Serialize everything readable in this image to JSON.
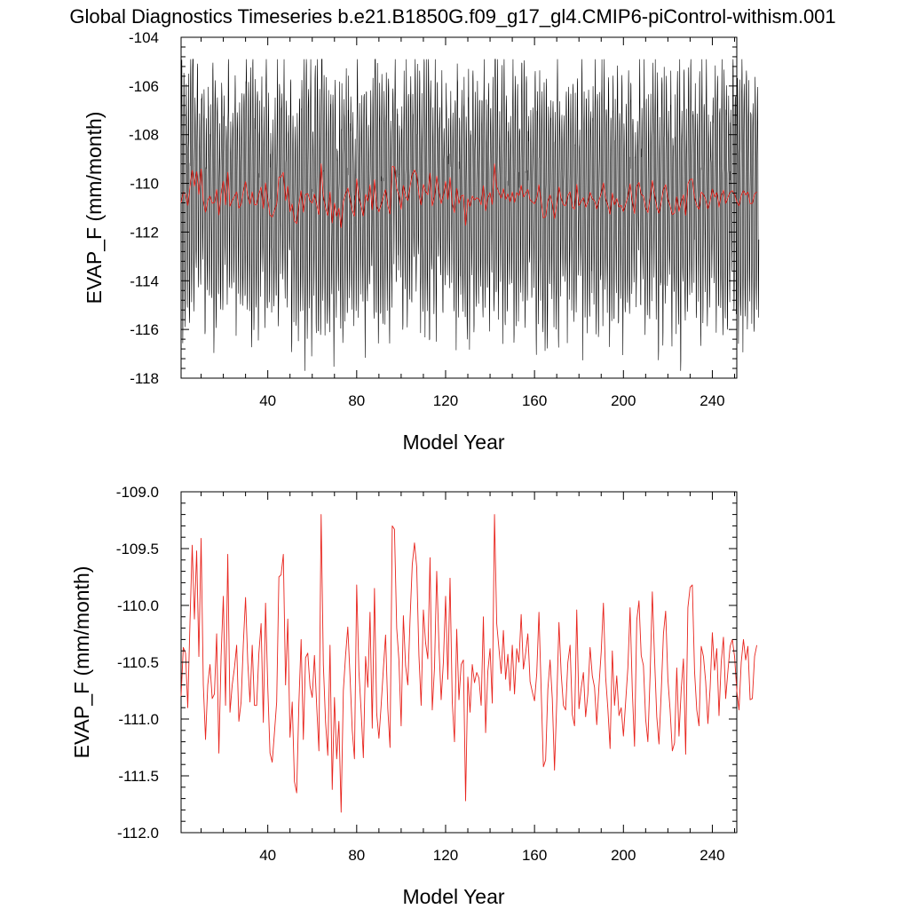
{
  "page": {
    "title": "Global Diagnostics Timeseries b.e21.B1850G.f09_g17_gl4.CMIP6-piControl-withism.001"
  },
  "colors": {
    "background": "#ffffff",
    "monthly_line": "#000000",
    "annual_line": "#e8241d",
    "axis": "#000000"
  },
  "chart_data": [
    {
      "id": "top",
      "type": "line",
      "title": "Global Diagnostics Timeseries b.e21.B1850G.f09_g17_gl4.CMIP6-piControl-withism.001",
      "xlabel": "Model Year",
      "ylabel": "EVAP_F (mm/month)",
      "xlim": [
        1,
        251
      ],
      "ylim": [
        -118,
        -104
      ],
      "x_ticks": [
        40,
        80,
        120,
        160,
        200,
        240
      ],
      "x_tick_labels": [
        "40",
        "80",
        "120",
        "160",
        "200",
        "240"
      ],
      "y_ticks": [
        -118,
        -116,
        -114,
        -112,
        -110,
        -108,
        -106,
        -104
      ],
      "y_tick_labels": [
        "-118",
        "-116",
        "-114",
        "-112",
        "-110",
        "-108",
        "-106",
        "-104"
      ],
      "grid": false,
      "legend": "none",
      "series": [
        {
          "kind": "monthly",
          "color": "#000000",
          "description_points": "monthly values oscillating around the annual mean with seasonal amplitude of about 3-5 mm/month, overall range -117.7 to -104.9",
          "x_start": 1,
          "x_step": 0.0833333,
          "count": 2988,
          "ymin_observed": -117.7,
          "ymax_observed": -104.9
        },
        {
          "kind": "annual",
          "color": "#e8241d",
          "note": "same annual series as the lower panel"
        }
      ]
    },
    {
      "id": "bottom",
      "type": "line",
      "xlabel": "Model Year",
      "ylabel": "EVAP_F (mm/month)",
      "xlim": [
        1,
        251
      ],
      "ylim": [
        -112.0,
        -109.0
      ],
      "x_ticks": [
        40,
        80,
        120,
        160,
        200,
        240
      ],
      "x_tick_labels": [
        "40",
        "80",
        "120",
        "160",
        "200",
        "240"
      ],
      "y_ticks": [
        -112.0,
        -111.5,
        -111.0,
        -110.5,
        -110.0,
        -109.5,
        -109.0
      ],
      "y_tick_labels": [
        "-112.0",
        "-111.5",
        "-111.0",
        "-110.5",
        "-110.0",
        "-109.5",
        "-109.0"
      ],
      "grid": false,
      "legend": "none",
      "series": [
        {
          "kind": "annual",
          "color": "#e8241d",
          "x_start": 1,
          "x_step": 1,
          "values": [
            -110.8,
            -110.37,
            -110.42,
            -110.9,
            -110.15,
            -109.47,
            -110.12,
            -109.52,
            -110.45,
            -109.41,
            -110.7,
            -111.18,
            -110.7,
            -110.52,
            -110.82,
            -110.78,
            -110.25,
            -111.3,
            -110.45,
            -109.92,
            -110.88,
            -109.55,
            -110.94,
            -110.7,
            -110.55,
            -110.35,
            -111.02,
            -110.85,
            -110.34,
            -109.93,
            -110.5,
            -110.85,
            -110.35,
            -110.88,
            -110.88,
            -110.42,
            -110.16,
            -111.03,
            -109.98,
            -110.72,
            -111.3,
            -111.38,
            -111.12,
            -110.85,
            -109.75,
            -109.73,
            -109.55,
            -110.7,
            -110.12,
            -111.16,
            -110.85,
            -111.55,
            -111.65,
            -110.86,
            -110.3,
            -111.18,
            -110.46,
            -110.42,
            -110.71,
            -110.81,
            -110.44,
            -110.88,
            -111.28,
            -109.2,
            -110.52,
            -111.03,
            -111.32,
            -110.35,
            -111.62,
            -110.81,
            -111.35,
            -111.02,
            -111.82,
            -110.75,
            -110.44,
            -110.19,
            -110.62,
            -111.1,
            -111.35,
            -109.82,
            -110.58,
            -110.93,
            -111.34,
            -110.45,
            -110.72,
            -110.06,
            -111.08,
            -109.85,
            -110.95,
            -111.17,
            -110.88,
            -110.56,
            -110.26,
            -110.91,
            -111.25,
            -109.3,
            -109.33,
            -110.2,
            -110.48,
            -111.06,
            -110.09,
            -110.53,
            -110.7,
            -110.13,
            -109.64,
            -109.45,
            -109.66,
            -110.44,
            -110.88,
            -110.04,
            -110.33,
            -110.47,
            -109.58,
            -110.92,
            -110.55,
            -109.7,
            -110.35,
            -110.83,
            -110.5,
            -109.92,
            -110.65,
            -109.76,
            -110.85,
            -111.2,
            -110.21,
            -110.83,
            -110.52,
            -110.48,
            -111.72,
            -110.63,
            -110.94,
            -110.52,
            -110.68,
            -110.59,
            -110.64,
            -110.88,
            -110.1,
            -111.12,
            -110.58,
            -110.38,
            -110.86,
            -109.2,
            -110.16,
            -110.38,
            -110.6,
            -110.22,
            -110.65,
            -110.43,
            -110.75,
            -110.35,
            -110.78,
            -110.38,
            -110.5,
            -110.08,
            -110.56,
            -110.42,
            -110.25,
            -110.67,
            -110.76,
            -110.84,
            -110.6,
            -110.06,
            -110.75,
            -111.42,
            -111.36,
            -110.74,
            -110.48,
            -110.82,
            -111.45,
            -110.85,
            -110.15,
            -110.6,
            -110.88,
            -110.92,
            -110.5,
            -110.35,
            -110.96,
            -111.06,
            -110.04,
            -110.91,
            -110.73,
            -110.59,
            -110.98,
            -110.78,
            -110.37,
            -110.62,
            -110.72,
            -111.05,
            -110.71,
            -110.41,
            -109.98,
            -110.63,
            -110.91,
            -111.26,
            -110.4,
            -110.88,
            -110.62,
            -110.97,
            -110.9,
            -111.15,
            -110.85,
            -110.55,
            -110.02,
            -110.75,
            -111.24,
            -110.13,
            -109.96,
            -110.44,
            -110.53,
            -111.0,
            -111.2,
            -110.62,
            -109.88,
            -110.46,
            -110.98,
            -111.22,
            -110.77,
            -110.25,
            -110.05,
            -110.65,
            -110.92,
            -111.28,
            -111.21,
            -110.55,
            -111.15,
            -110.74,
            -110.47,
            -111.31,
            -110.02,
            -109.84,
            -109.82,
            -110.58,
            -110.92,
            -111.06,
            -110.36,
            -110.45,
            -110.67,
            -111.04,
            -110.73,
            -110.24,
            -110.57,
            -110.38,
            -110.97,
            -110.5,
            -110.28,
            -110.82,
            -110.58,
            -110.36,
            -110.3,
            -110.45,
            -110.75,
            -110.92,
            -110.5,
            -110.3,
            -110.48,
            -110.36,
            -110.83,
            -110.82,
            -110.45,
            -110.35
          ]
        }
      ]
    }
  ]
}
